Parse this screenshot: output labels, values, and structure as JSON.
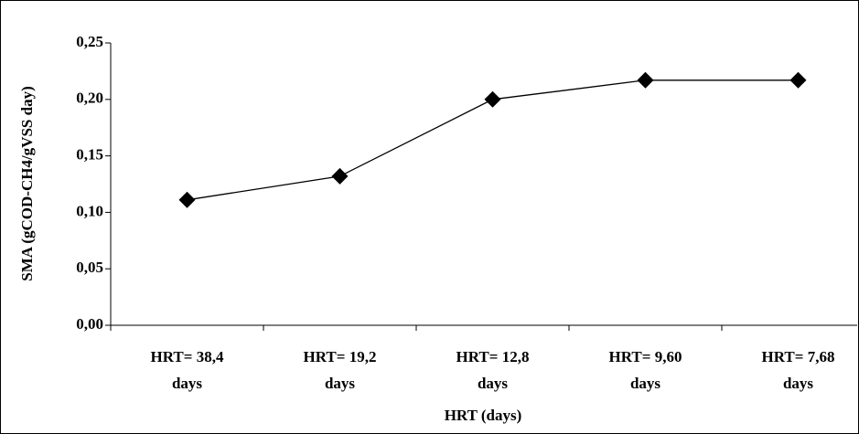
{
  "chart_data": {
    "type": "line",
    "x_label": "HRT (days)",
    "y_label": "SMA (gCOD-CH4/gVSS day)",
    "categories": [
      "HRT= 38,4 days",
      "HRT= 19,2 days",
      "HRT= 12,8 days",
      "HRT= 9,60 days",
      "HRT= 7,68 days"
    ],
    "series": [
      {
        "name": "SMA",
        "color": "#000000",
        "values": [
          0.111,
          0.132,
          0.2,
          0.217,
          0.217
        ]
      }
    ],
    "ylim": [
      0,
      0.25
    ],
    "yticks": [
      {
        "value": 0,
        "label": "0,00"
      },
      {
        "value": 0.05,
        "label": "0,05"
      },
      {
        "value": 0.1,
        "label": "0,10"
      },
      {
        "value": 0.15,
        "label": "0,15"
      },
      {
        "value": 0.2,
        "label": "0,20"
      },
      {
        "value": 0.25,
        "label": "0,25"
      }
    ],
    "marker": "diamond",
    "grid": false
  }
}
